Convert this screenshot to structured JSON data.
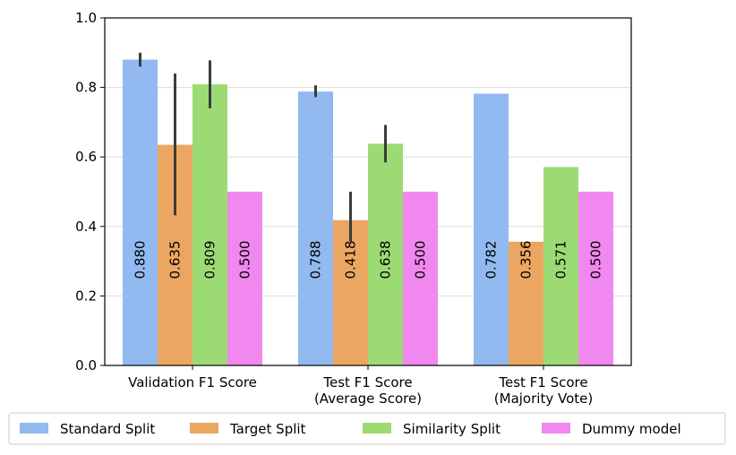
{
  "chart_data": {
    "type": "bar",
    "title": "",
    "xlabel": "",
    "ylabel": "",
    "ylim": [
      0,
      1.0
    ],
    "yticks": [
      "0.0",
      "0.2",
      "0.4",
      "0.6",
      "0.8",
      "1.0"
    ],
    "ytick_values": [
      0,
      0.2,
      0.4,
      0.6,
      0.8,
      1.0
    ],
    "grid": true,
    "legend_position": "bottom",
    "categories": [
      [
        "Validation F1 Score"
      ],
      [
        "Test F1 Score",
        "(Average Score)"
      ],
      [
        "Test F1 Score",
        "(Majority Vote)"
      ]
    ],
    "series": [
      {
        "name": "Standard Split",
        "color": "#92baf0",
        "values": [
          0.88,
          0.788,
          0.782
        ],
        "labels": [
          "0.880",
          "0.788",
          "0.782"
        ],
        "errors": [
          [
            0.86,
            0.9
          ],
          [
            0.772,
            0.806
          ],
          null
        ]
      },
      {
        "name": "Target Split",
        "color": "#eba761",
        "values": [
          0.635,
          0.418,
          0.356
        ],
        "labels": [
          "0.635",
          "0.418",
          "0.356"
        ],
        "errors": [
          [
            0.432,
            0.84
          ],
          [
            0.356,
            0.5
          ],
          null
        ]
      },
      {
        "name": "Similarity Split",
        "color": "#9cdb73",
        "values": [
          0.809,
          0.638,
          0.571
        ],
        "labels": [
          "0.809",
          "0.638",
          "0.571"
        ],
        "errors": [
          [
            0.74,
            0.878
          ],
          [
            0.584,
            0.692
          ],
          null
        ]
      },
      {
        "name": "Dummy model",
        "color": "#f088ef",
        "values": [
          0.5,
          0.5,
          0.5
        ],
        "labels": [
          "0.500",
          "0.500",
          "0.500"
        ],
        "errors": [
          null,
          null,
          null
        ]
      }
    ],
    "error_bar_color": "#3c3c3c"
  }
}
